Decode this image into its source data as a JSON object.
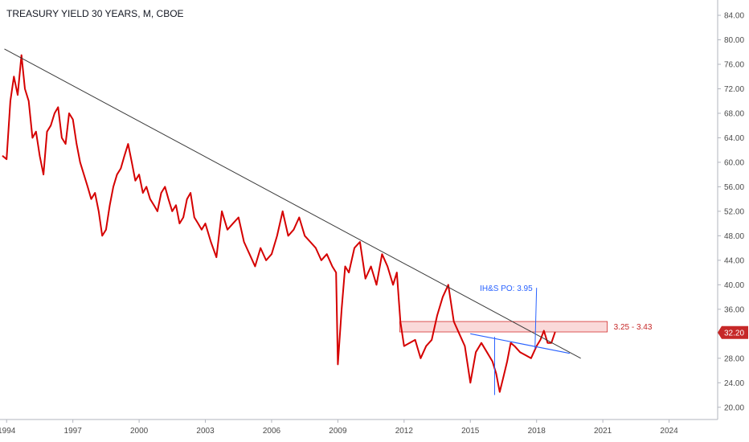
{
  "chart_title": "TREASURY YIELD 30 YEARS, M, CBOE",
  "colors": {
    "series": "#d50000",
    "trendline": "#3a3a3a",
    "neckline": "#2962ff",
    "zone_fill": "#f8cccc",
    "zone_stroke": "#d32f2f",
    "price_tag": "#c62828",
    "axis": "#b2b5be"
  },
  "chart_data": {
    "type": "line",
    "title": "TREASURY YIELD 30 YEARS, M, CBOE",
    "x_tick_labels": [
      "1994",
      "1997",
      "2000",
      "2003",
      "2006",
      "2009",
      "2012",
      "2015",
      "2018",
      "2021",
      "2024"
    ],
    "y_tick_labels": [
      "84.00",
      "80.00",
      "76.00",
      "72.00",
      "68.00",
      "64.00",
      "60.00",
      "56.00",
      "52.00",
      "48.00",
      "44.00",
      "40.00",
      "36.00",
      "32.00",
      "28.00",
      "24.00",
      "20.00"
    ],
    "ylim": [
      18.0,
      86.5
    ],
    "xlim": [
      1993.7,
      2026.2
    ],
    "last_value_label": "32.20",
    "series": [
      {
        "color": "#d50000",
        "x": [
          1993.83,
          1994.0,
          1994.17,
          1994.33,
          1994.5,
          1994.67,
          1994.83,
          1995.0,
          1995.17,
          1995.33,
          1995.5,
          1995.67,
          1995.83,
          1996.0,
          1996.17,
          1996.33,
          1996.5,
          1996.67,
          1996.83,
          1997.0,
          1997.17,
          1997.33,
          1997.5,
          1997.67,
          1997.83,
          1998.0,
          1998.17,
          1998.33,
          1998.5,
          1998.67,
          1998.83,
          1999.0,
          1999.17,
          1999.33,
          1999.5,
          1999.67,
          1999.83,
          2000.0,
          2000.17,
          2000.33,
          2000.5,
          2000.67,
          2000.83,
          2001.0,
          2001.17,
          2001.33,
          2001.5,
          2001.67,
          2001.83,
          2002.0,
          2002.17,
          2002.33,
          2002.5,
          2002.67,
          2002.83,
          2003.0,
          2003.25,
          2003.5,
          2003.75,
          2004.0,
          2004.25,
          2004.5,
          2004.75,
          2005.0,
          2005.25,
          2005.5,
          2005.75,
          2006.0,
          2006.25,
          2006.5,
          2006.75,
          2007.0,
          2007.25,
          2007.5,
          2007.75,
          2008.0,
          2008.25,
          2008.5,
          2008.75,
          2008.92,
          2009.0,
          2009.17,
          2009.33,
          2009.5,
          2009.75,
          2010.0,
          2010.25,
          2010.5,
          2010.75,
          2011.0,
          2011.25,
          2011.5,
          2011.67,
          2011.83,
          2012.0,
          2012.25,
          2012.5,
          2012.75,
          2013.0,
          2013.25,
          2013.5,
          2013.75,
          2014.0,
          2014.25,
          2014.5,
          2014.75,
          2015.0,
          2015.25,
          2015.5,
          2015.75,
          2016.0,
          2016.17,
          2016.33,
          2016.5,
          2016.67,
          2016.83,
          2017.0,
          2017.25,
          2017.5,
          2017.75,
          2018.0,
          2018.17,
          2018.33,
          2018.5,
          2018.67,
          2018.83
        ],
        "values": [
          61.0,
          60.5,
          70.0,
          74.0,
          71.0,
          77.5,
          72.0,
          70.0,
          64.0,
          65.0,
          61.0,
          58.0,
          65.0,
          66.0,
          68.0,
          69.0,
          64.0,
          63.0,
          68.0,
          67.0,
          63.0,
          60.0,
          58.0,
          56.0,
          54.0,
          55.0,
          52.0,
          48.0,
          49.0,
          53.0,
          56.0,
          58.0,
          59.0,
          61.0,
          63.0,
          60.0,
          57.0,
          58.0,
          55.0,
          56.0,
          54.0,
          53.0,
          52.0,
          55.0,
          56.0,
          54.0,
          52.0,
          53.0,
          50.0,
          51.0,
          54.0,
          55.0,
          51.0,
          50.0,
          49.0,
          50.0,
          47.0,
          44.5,
          52.0,
          49.0,
          50.0,
          51.0,
          47.0,
          45.0,
          43.0,
          46.0,
          44.0,
          45.0,
          48.0,
          52.0,
          48.0,
          49.0,
          51.0,
          48.0,
          47.0,
          46.0,
          44.0,
          45.0,
          43.0,
          42.0,
          27.0,
          36.0,
          43.0,
          42.0,
          46.0,
          47.0,
          41.0,
          43.0,
          40.0,
          45.0,
          43.0,
          40.0,
          42.0,
          34.0,
          30.0,
          30.5,
          31.0,
          28.0,
          30.0,
          31.0,
          35.0,
          38.0,
          40.0,
          34.0,
          32.0,
          30.0,
          24.0,
          29.0,
          30.5,
          29.0,
          27.5,
          25.5,
          22.5,
          25.0,
          27.5,
          30.5,
          30.0,
          29.0,
          28.5,
          28.0,
          30.0,
          31.0,
          32.5,
          30.5,
          30.5,
          32.2
        ]
      }
    ],
    "annotations": [
      {
        "type": "trendline",
        "from": {
          "x": 1993.9,
          "y": 78.5
        },
        "to": {
          "x": 2020.0,
          "y": 28.0
        }
      },
      {
        "type": "neckline",
        "from": {
          "x": 2015.0,
          "y": 32.0
        },
        "to": {
          "x": 2019.5,
          "y": 28.8
        }
      },
      {
        "type": "resistance_zone",
        "x_start": 2011.8,
        "x_end": 2021.2,
        "y_low": 32.3,
        "y_high": 34.0,
        "label": "3.25 - 3.43"
      },
      {
        "type": "price_objective",
        "label": "IH&S PO: 3.95",
        "x": 2018.0,
        "y_top": 39.5,
        "y_bottom": 29.5
      },
      {
        "type": "measure_line",
        "x": 2016.1,
        "y_top": 31.5,
        "y_bottom": 22.0
      }
    ]
  }
}
